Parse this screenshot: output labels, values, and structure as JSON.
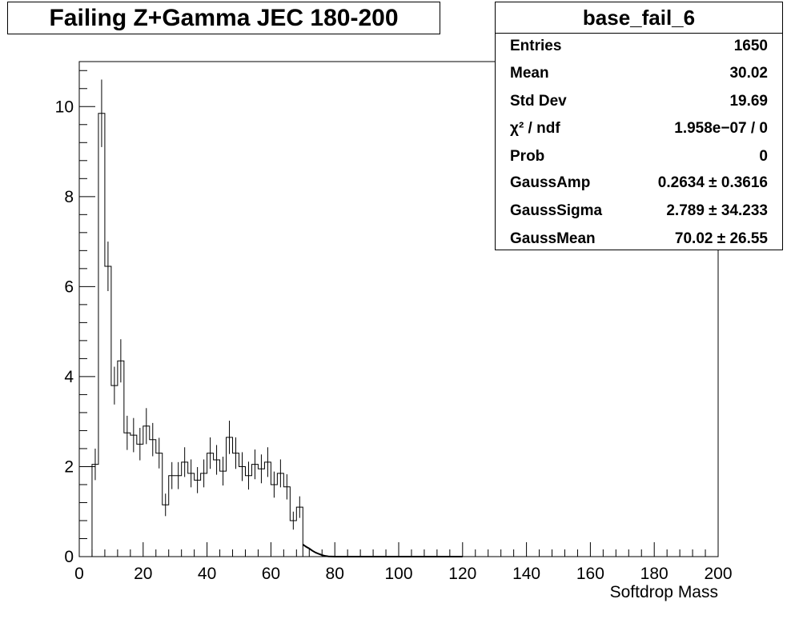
{
  "title": "Failing Z+Gamma JEC 180-200",
  "stats": {
    "name": "base_fail_6",
    "rows": [
      {
        "label": "Entries",
        "value": "1650"
      },
      {
        "label": "Mean",
        "value": "30.02"
      },
      {
        "label": "Std Dev",
        "value": "19.69"
      },
      {
        "label": "χ² / ndf",
        "value": "1.958e−07 / 0"
      },
      {
        "label": "Prob",
        "value": "0"
      },
      {
        "label": "GaussAmp",
        "value": "0.2634 ± 0.3616"
      },
      {
        "label": "GaussSigma",
        "value": "2.789 ± 34.233"
      },
      {
        "label": "GaussMean",
        "value": "70.02 ± 26.55"
      }
    ]
  },
  "chart_data": {
    "type": "bar",
    "title": "Failing Z+Gamma JEC 180-200",
    "xlabel": "Softdrop Mass",
    "ylabel": "",
    "xlim": [
      0,
      200
    ],
    "ylim": [
      0,
      11
    ],
    "xticks": [
      0,
      20,
      40,
      60,
      80,
      100,
      120,
      140,
      160,
      180,
      200
    ],
    "yticks": [
      0,
      2,
      4,
      6,
      8,
      10
    ],
    "bin_width": 2,
    "bin_low_edges": [
      4,
      6,
      8,
      10,
      12,
      14,
      16,
      18,
      20,
      22,
      24,
      26,
      28,
      30,
      32,
      34,
      36,
      38,
      40,
      42,
      44,
      46,
      48,
      50,
      52,
      54,
      56,
      58,
      60,
      62,
      64,
      66,
      68
    ],
    "values": [
      2.05,
      9.85,
      6.45,
      3.8,
      4.35,
      2.75,
      2.7,
      2.5,
      2.9,
      2.6,
      2.3,
      1.15,
      1.8,
      1.8,
      2.1,
      1.85,
      1.7,
      1.85,
      2.3,
      2.15,
      1.9,
      2.65,
      2.3,
      2.0,
      1.8,
      2.05,
      1.95,
      2.1,
      1.6,
      1.85,
      1.55,
      0.8,
      1.1
    ],
    "errors": [
      0.35,
      0.75,
      0.55,
      0.42,
      0.48,
      0.38,
      0.38,
      0.36,
      0.4,
      0.37,
      0.34,
      0.25,
      0.3,
      0.3,
      0.33,
      0.31,
      0.29,
      0.31,
      0.35,
      0.33,
      0.32,
      0.37,
      0.35,
      0.32,
      0.31,
      0.33,
      0.32,
      0.33,
      0.29,
      0.31,
      0.28,
      0.2,
      0.24
    ],
    "fit_tail": {
      "x": [
        70,
        71,
        72,
        73,
        74,
        75,
        76,
        77,
        78,
        80,
        120
      ],
      "y": [
        0.27,
        0.22,
        0.18,
        0.13,
        0.09,
        0.06,
        0.035,
        0.015,
        0.005,
        0.0,
        0.0
      ]
    }
  }
}
